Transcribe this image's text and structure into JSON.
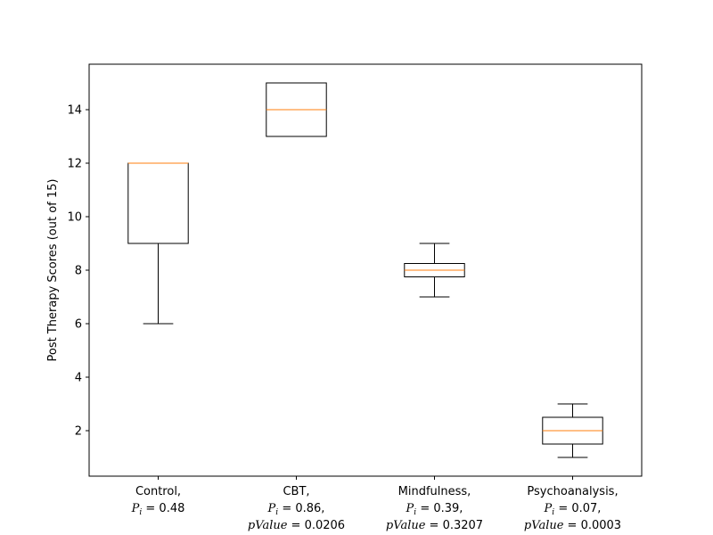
{
  "chart_data": {
    "type": "box",
    "ylabel": "Post Therapy Scores (out of 15)",
    "ylim": [
      0.3,
      15.7
    ],
    "yticks": [
      2,
      4,
      6,
      8,
      10,
      12,
      14
    ],
    "categories": [
      {
        "label_lines": [
          [
            {
              "t": "Control,"
            }
          ],
          [
            {
              "t": "P",
              "i": true
            },
            {
              "t": "i",
              "i": true,
              "sub": true
            },
            {
              "t": " = 0.48"
            }
          ]
        ],
        "box": {
          "whislo": 6,
          "q1": 9,
          "med": 12,
          "q3": 12,
          "whishi": 12
        }
      },
      {
        "label_lines": [
          [
            {
              "t": "CBT,"
            }
          ],
          [
            {
              "t": "P",
              "i": true
            },
            {
              "t": "i",
              "i": true,
              "sub": true
            },
            {
              "t": " = 0.86,"
            }
          ],
          [
            {
              "t": "pValue",
              "i": true
            },
            {
              "t": " = 0.0206"
            }
          ]
        ],
        "box": {
          "whislo": 13,
          "q1": 13,
          "med": 14,
          "q3": 15,
          "whishi": 15
        }
      },
      {
        "label_lines": [
          [
            {
              "t": "Mindfulness,"
            }
          ],
          [
            {
              "t": "P",
              "i": true
            },
            {
              "t": "i",
              "i": true,
              "sub": true
            },
            {
              "t": " = 0.39,"
            }
          ],
          [
            {
              "t": "pValue",
              "i": true
            },
            {
              "t": " = 0.3207"
            }
          ]
        ],
        "box": {
          "whislo": 7,
          "q1": 7.75,
          "med": 8,
          "q3": 8.25,
          "whishi": 9
        }
      },
      {
        "label_lines": [
          [
            {
              "t": "Psychoanalysis,"
            }
          ],
          [
            {
              "t": "P",
              "i": true
            },
            {
              "t": "i",
              "i": true,
              "sub": true
            },
            {
              "t": " = 0.07,"
            }
          ],
          [
            {
              "t": "pValue",
              "i": true
            },
            {
              "t": " = 0.0003"
            }
          ]
        ],
        "box": {
          "whislo": 1,
          "q1": 1.5,
          "med": 2,
          "q3": 2.5,
          "whishi": 3
        }
      }
    ],
    "colors": {
      "box": "#000000",
      "median": "#ff7f0e",
      "axes": "#000000"
    },
    "grid": false,
    "legend": "none"
  }
}
